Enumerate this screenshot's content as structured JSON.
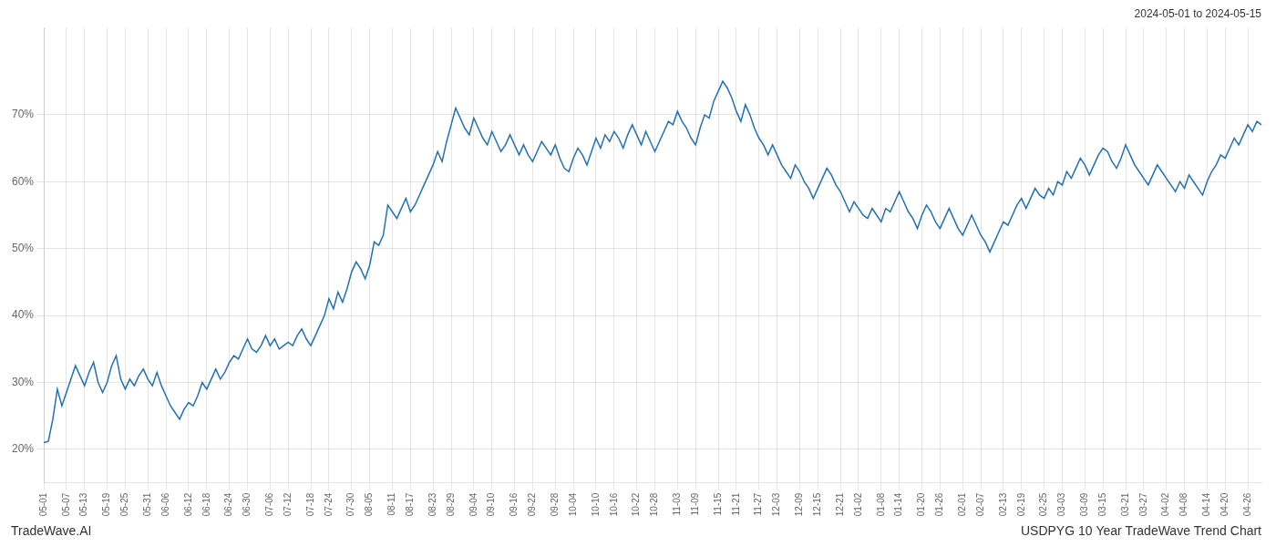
{
  "chart_data": {
    "type": "line",
    "title": "USDPYG 10 Year TradeWave Trend Chart",
    "subtitle": "2024-05-01 to 2024-05-15",
    "annotations": [
      "TradeWave.AI"
    ],
    "color": "#2171b5",
    "grid": true,
    "ylim": [
      15,
      83
    ],
    "yticks": [
      {
        "value": 20,
        "label": "20%"
      },
      {
        "value": 30,
        "label": "30%"
      },
      {
        "value": 40,
        "label": "40%"
      },
      {
        "value": 50,
        "label": "50%"
      },
      {
        "value": 60,
        "label": "60%"
      },
      {
        "value": 70,
        "label": "70%"
      }
    ],
    "categories": [
      "05-01",
      null,
      null,
      null,
      null,
      "05-07",
      null,
      null,
      null,
      "05-13",
      null,
      null,
      null,
      null,
      "05-19",
      null,
      null,
      null,
      "05-25",
      null,
      null,
      null,
      null,
      "05-31",
      null,
      null,
      null,
      "06-06",
      null,
      null,
      null,
      null,
      "06-12",
      null,
      null,
      null,
      "06-18",
      null,
      null,
      null,
      null,
      "06-24",
      null,
      null,
      null,
      "06-30",
      null,
      null,
      null,
      null,
      "07-06",
      null,
      null,
      null,
      "07-12",
      null,
      null,
      null,
      null,
      "07-18",
      null,
      null,
      null,
      "07-24",
      null,
      null,
      null,
      null,
      "07-30",
      null,
      null,
      null,
      "08-05",
      null,
      null,
      null,
      null,
      "08-11",
      null,
      null,
      null,
      "08-17",
      null,
      null,
      null,
      null,
      "08-23",
      null,
      null,
      null,
      "08-29",
      null,
      null,
      null,
      null,
      "09-04",
      null,
      null,
      null,
      "09-10",
      null,
      null,
      null,
      null,
      "09-16",
      null,
      null,
      null,
      "09-22",
      null,
      null,
      null,
      null,
      "09-28",
      null,
      null,
      null,
      "10-04",
      null,
      null,
      null,
      null,
      "10-10",
      null,
      null,
      null,
      "10-16",
      null,
      null,
      null,
      null,
      "10-22",
      null,
      null,
      null,
      "10-28",
      null,
      null,
      null,
      null,
      "11-03",
      null,
      null,
      null,
      "11-09",
      null,
      null,
      null,
      null,
      "11-15",
      null,
      null,
      null,
      "11-21",
      null,
      null,
      null,
      null,
      "11-27",
      null,
      null,
      null,
      "12-03",
      null,
      null,
      null,
      null,
      "12-09",
      null,
      null,
      null,
      "12-15",
      null,
      null,
      null,
      null,
      "12-21",
      null,
      null,
      null,
      "01-02",
      null,
      null,
      null,
      null,
      "01-08",
      null,
      null,
      null,
      "01-14",
      null,
      null,
      null,
      null,
      "01-20",
      null,
      null,
      null,
      "01-26",
      null,
      null,
      null,
      null,
      "02-01",
      null,
      null,
      null,
      "02-07",
      null,
      null,
      null,
      null,
      "02-13",
      null,
      null,
      null,
      "02-19",
      null,
      null,
      null,
      null,
      "02-25",
      null,
      null,
      null,
      "03-03",
      null,
      null,
      null,
      null,
      "03-09",
      null,
      null,
      null,
      "03-15",
      null,
      null,
      null,
      null,
      "03-21",
      null,
      null,
      null,
      "03-27",
      null,
      null,
      null,
      null,
      "04-02",
      null,
      null,
      null,
      "04-08",
      null,
      null,
      null,
      null,
      "04-14",
      null,
      null,
      null,
      "04-20",
      null,
      null,
      null,
      null,
      "04-26",
      null,
      null,
      null
    ],
    "values": [
      21.0,
      21.2,
      24.5,
      29.0,
      26.5,
      28.5,
      30.5,
      32.5,
      31.0,
      29.5,
      31.5,
      33.0,
      30.0,
      28.5,
      30.0,
      32.5,
      34.0,
      30.5,
      29.0,
      30.5,
      29.5,
      31.0,
      32.0,
      30.5,
      29.5,
      31.5,
      29.5,
      28.0,
      26.5,
      25.5,
      24.5,
      26.0,
      27.0,
      26.5,
      28.0,
      30.0,
      29.0,
      30.5,
      32.0,
      30.5,
      31.5,
      33.0,
      34.0,
      33.5,
      35.0,
      36.5,
      35.0,
      34.5,
      35.5,
      37.0,
      35.5,
      36.5,
      35.0,
      35.5,
      36.0,
      35.5,
      37.0,
      38.0,
      36.5,
      35.5,
      37.0,
      38.5,
      40.0,
      42.5,
      41.0,
      43.5,
      42.0,
      44.0,
      46.5,
      48.0,
      47.0,
      45.5,
      47.5,
      51.0,
      50.5,
      52.0,
      56.5,
      55.5,
      54.5,
      56.0,
      57.5,
      55.5,
      56.5,
      58.0,
      59.5,
      61.0,
      62.5,
      64.5,
      63.0,
      66.0,
      68.5,
      71.0,
      69.5,
      68.0,
      67.0,
      69.5,
      68.0,
      66.5,
      65.5,
      67.5,
      66.0,
      64.5,
      65.5,
      67.0,
      65.5,
      64.0,
      65.5,
      64.0,
      63.0,
      64.5,
      66.0,
      65.0,
      64.0,
      65.5,
      63.5,
      62.0,
      61.5,
      63.5,
      65.0,
      64.0,
      62.5,
      64.5,
      66.5,
      65.0,
      67.0,
      66.0,
      67.5,
      66.5,
      65.0,
      67.0,
      68.5,
      67.0,
      65.5,
      67.5,
      66.0,
      64.5,
      66.0,
      67.5,
      69.0,
      68.5,
      70.5,
      69.0,
      68.0,
      66.5,
      65.5,
      68.0,
      70.0,
      69.5,
      72.0,
      73.5,
      75.0,
      74.0,
      72.5,
      70.5,
      69.0,
      71.5,
      70.0,
      68.0,
      66.5,
      65.5,
      64.0,
      65.5,
      64.0,
      62.5,
      61.5,
      60.5,
      62.5,
      61.5,
      60.0,
      59.0,
      57.5,
      59.0,
      60.5,
      62.0,
      61.0,
      59.5,
      58.5,
      57.0,
      55.5,
      57.0,
      56.0,
      55.0,
      54.5,
      56.0,
      55.0,
      54.0,
      56.0,
      55.5,
      57.0,
      58.5,
      57.0,
      55.5,
      54.5,
      53.0,
      55.0,
      56.5,
      55.5,
      54.0,
      53.0,
      54.5,
      56.0,
      54.5,
      53.0,
      52.0,
      53.5,
      55.0,
      53.5,
      52.0,
      51.0,
      49.5,
      51.0,
      52.5,
      54.0,
      53.5,
      55.0,
      56.5,
      57.5,
      56.0,
      57.5,
      59.0,
      58.0,
      57.5,
      59.0,
      58.0,
      60.0,
      59.5,
      61.5,
      60.5,
      62.0,
      63.5,
      62.5,
      61.0,
      62.5,
      64.0,
      65.0,
      64.5,
      63.0,
      62.0,
      63.5,
      65.5,
      64.0,
      62.5,
      61.5,
      60.5,
      59.5,
      61.0,
      62.5,
      61.5,
      60.5,
      59.5,
      58.5,
      60.0,
      59.0,
      61.0,
      60.0,
      59.0,
      58.0,
      60.0,
      61.5,
      62.5,
      64.0,
      63.5,
      65.0,
      66.5,
      65.5,
      67.0,
      68.5,
      67.5,
      69.0,
      68.5
    ]
  }
}
